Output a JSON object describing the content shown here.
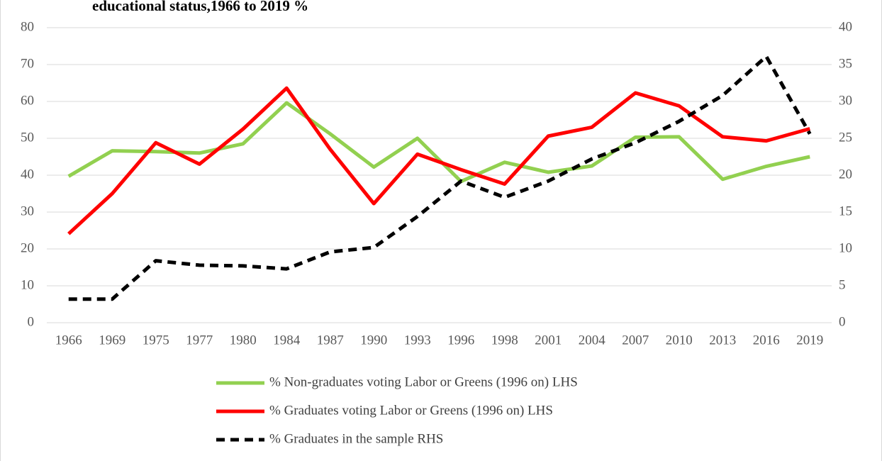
{
  "chart_data": {
    "type": "line",
    "title": "educational status,1966 to 2019 %",
    "categories": [
      "1966",
      "1969",
      "1975",
      "1977",
      "1980",
      "1984",
      "1987",
      "1990",
      "1993",
      "1996",
      "1998",
      "2001",
      "2004",
      "2007",
      "2010",
      "2013",
      "2016",
      "2019"
    ],
    "ylim": [
      0,
      80
    ],
    "yticks": [
      0,
      10,
      20,
      30,
      40,
      50,
      60,
      70,
      80
    ],
    "y2lim": [
      0,
      40
    ],
    "y2ticks": [
      0,
      5,
      10,
      15,
      20,
      25,
      30,
      35,
      40
    ],
    "grid": true,
    "legend": "bottom",
    "series": [
      {
        "name": "% Non-graduates voting Labor or Greens (1996 on) LHS",
        "color": "#92d050",
        "dashed": false,
        "values": [
          39.7,
          46.6,
          46.4,
          46.0,
          48.5,
          59.6,
          51.2,
          42.2,
          50.0,
          38.3,
          43.5,
          40.8,
          42.5,
          50.3,
          50.4,
          38.9,
          42.4,
          45.0
        ]
      },
      {
        "name": "% Graduates voting Labor or Greens (1996 on) LHS",
        "color": "#ff0000",
        "dashed": false,
        "values": [
          24.1,
          35.0,
          48.8,
          43.0,
          52.5,
          63.6,
          47.0,
          32.3,
          45.7,
          41.5,
          37.6,
          50.6,
          53.0,
          62.3,
          58.8,
          50.4,
          49.3,
          52.6
        ]
      },
      {
        "name": "% Graduates in the sample RHS",
        "color": "#000000",
        "dashed": true,
        "axis": "y2",
        "values": [
          3.2,
          3.2,
          8.4,
          7.8,
          7.7,
          7.3,
          9.6,
          10.2,
          14.4,
          19.2,
          17.0,
          19.2,
          22.2,
          24.4,
          27.3,
          30.8,
          36.1,
          25.6
        ]
      }
    ]
  }
}
